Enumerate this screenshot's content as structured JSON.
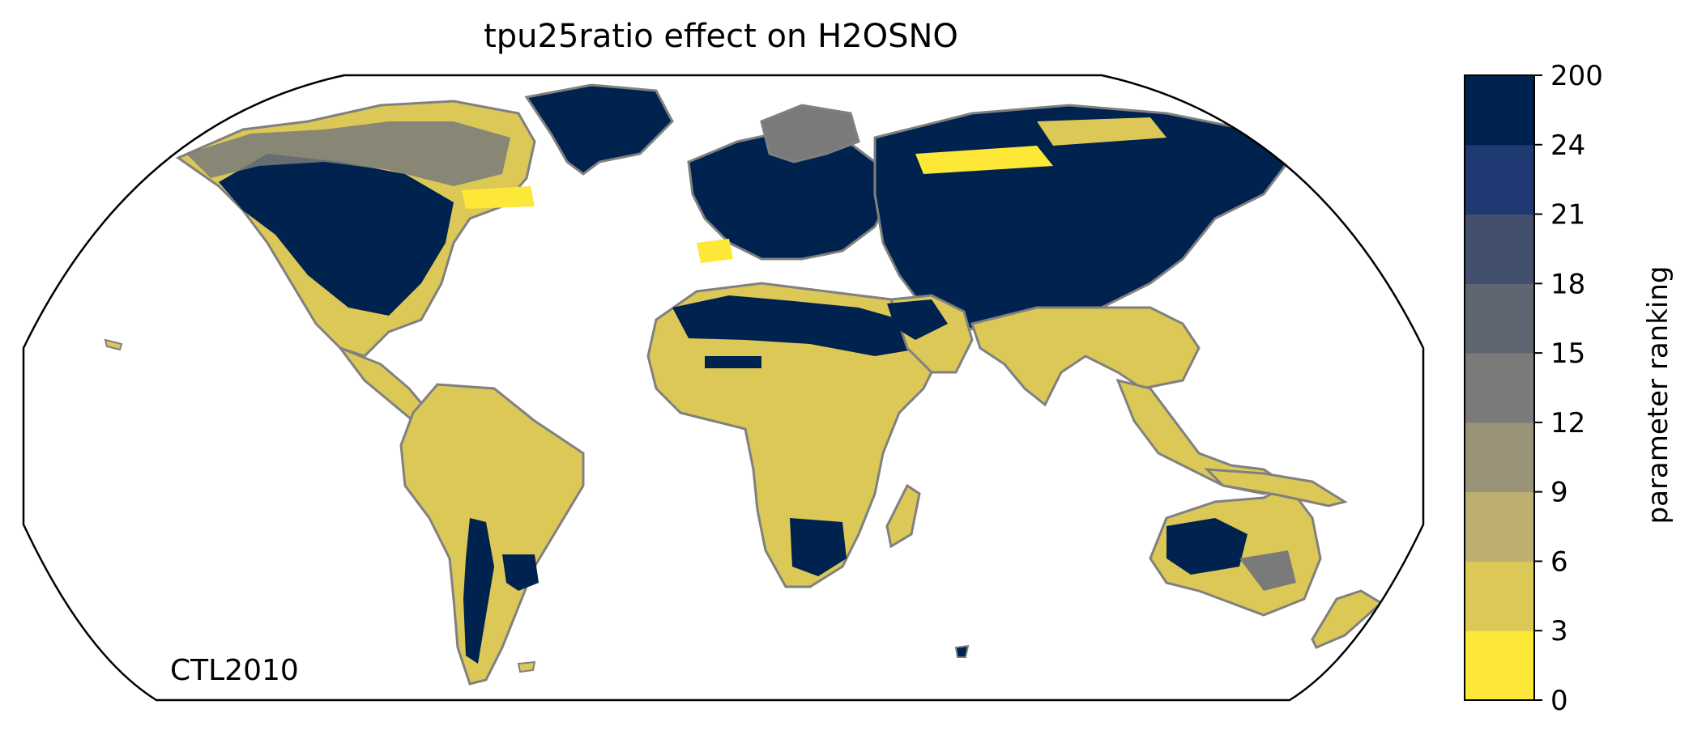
{
  "title": "tpu25ratio effect on H2OSNO",
  "run_label": "CTL2010",
  "colorbar": {
    "label": "parameter ranking",
    "tick_labels": [
      "0",
      "3",
      "6",
      "9",
      "12",
      "15",
      "18",
      "21",
      "24",
      "200"
    ],
    "colors": [
      "#fde737",
      "#dcc857",
      "#bdaf6f",
      "#9a9377",
      "#797a79",
      "#606671",
      "#42506e",
      "#1f3972",
      "#00224e"
    ]
  },
  "map": {
    "projection": "Robinson",
    "coastline_color": "#808080",
    "fill_colors": {
      "low": "#dcc857",
      "high": "#00224e",
      "mid": "#797a79",
      "bright": "#fde737"
    }
  }
}
